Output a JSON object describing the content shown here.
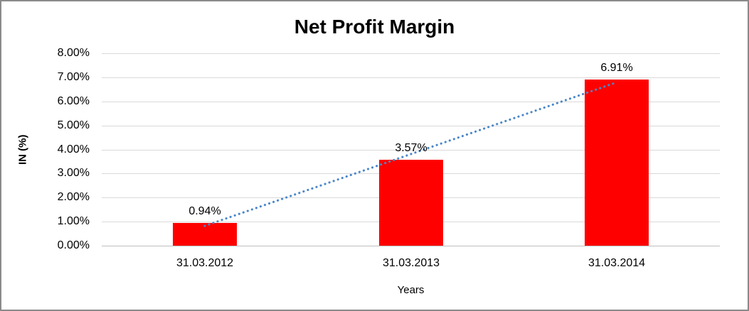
{
  "chart_data": {
    "type": "bar",
    "title": "Net Profit Margin",
    "xlabel": "Years",
    "ylabel": "IN (%)",
    "categories": [
      "31.03.2012",
      "31.03.2013",
      "31.03.2014"
    ],
    "values": [
      0.94,
      3.57,
      6.91
    ],
    "value_labels": [
      "0.94%",
      "3.57%",
      "6.91%"
    ],
    "y_ticks": [
      "8.00%",
      "7.00%",
      "6.00%",
      "5.00%",
      "4.00%",
      "3.00%",
      "2.00%",
      "1.00%",
      "0.00%"
    ],
    "ylim": [
      0,
      8
    ],
    "grid": true,
    "legend_position": "none",
    "bar_color": "#ff0000",
    "gridline_color": "#d9d9d9",
    "trendline": {
      "type": "linear",
      "style": "dotted",
      "color": "#4a86c8"
    }
  }
}
